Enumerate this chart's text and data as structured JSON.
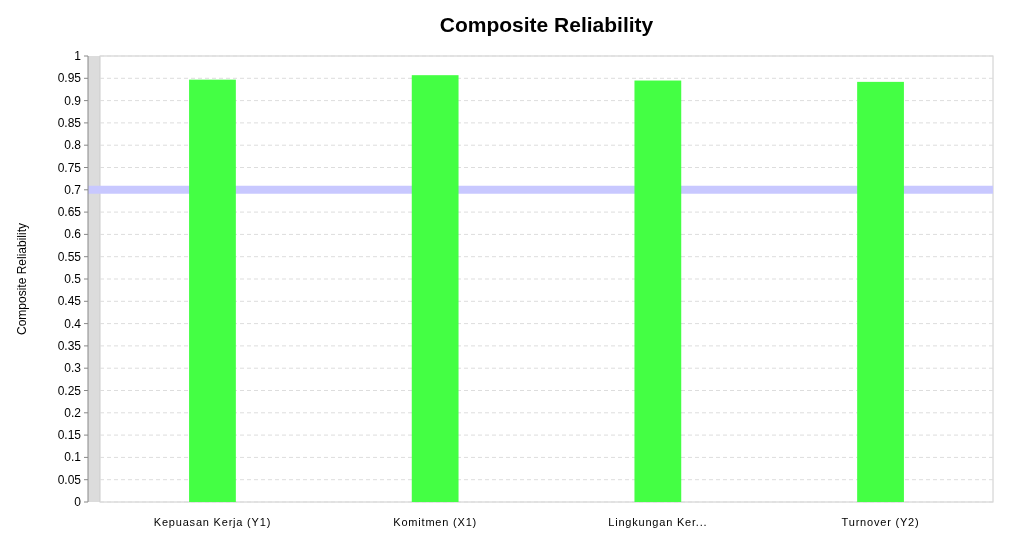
{
  "chart_data": {
    "type": "bar",
    "title": "Composite Reliability",
    "ylabel": "Composite Reliability",
    "categories": [
      "Kepuasan Kerja (Y1)",
      "Komitmen (X1)",
      "Lingkungan Ker...",
      "Turnover (Y2)"
    ],
    "values": [
      0.947,
      0.957,
      0.945,
      0.942
    ],
    "color": "#44ff44",
    "ylim": [
      0,
      1
    ],
    "yticks": [
      0,
      0.05,
      0.1,
      0.15,
      0.2,
      0.25,
      0.3,
      0.35,
      0.4,
      0.45,
      0.5,
      0.55,
      0.6,
      0.65,
      0.7,
      0.75,
      0.8,
      0.85,
      0.9,
      0.95,
      1
    ],
    "ref_lines": [
      {
        "axis": "y",
        "value": 0.7,
        "color": "#c8c8ff"
      }
    ],
    "grid": "y"
  }
}
